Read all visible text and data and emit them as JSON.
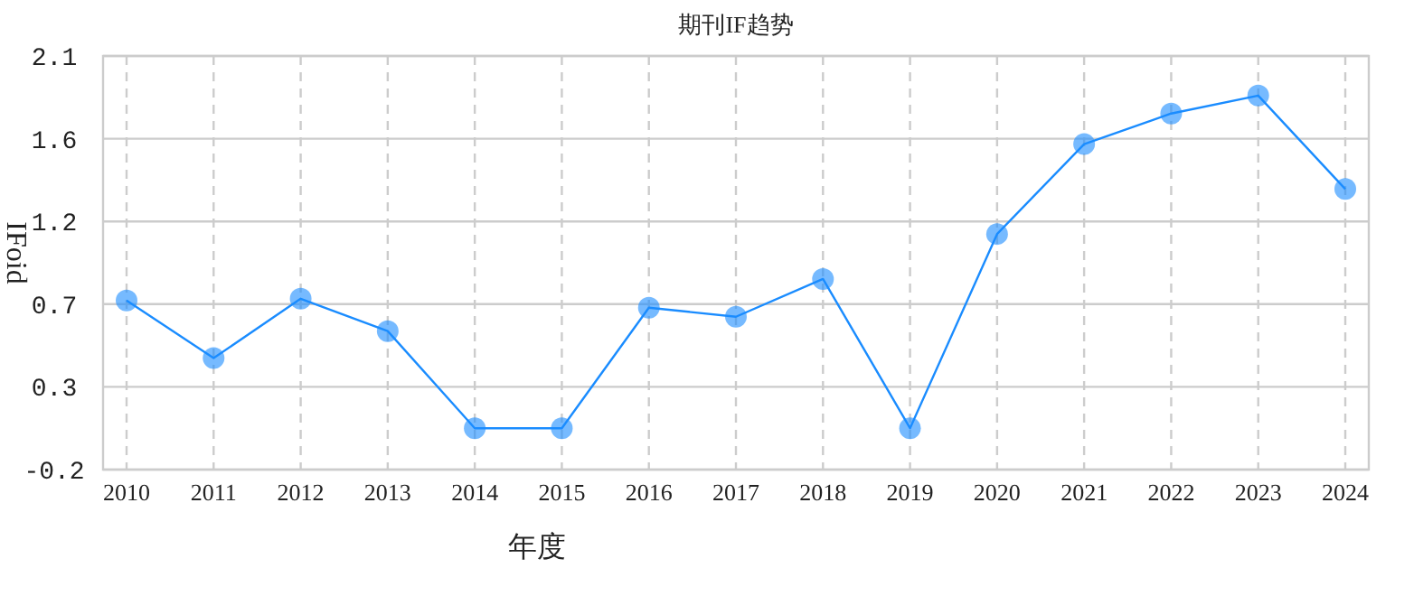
{
  "chart_data": {
    "type": "line",
    "title": "期刊IF趋势",
    "xlabel": "年度",
    "ylabel": "IFoid",
    "categories": [
      "2010",
      "2011",
      "2012",
      "2013",
      "2014",
      "2015",
      "2016",
      "2017",
      "2018",
      "2019",
      "2020",
      "2021",
      "2022",
      "2023",
      "2024"
    ],
    "series": [
      {
        "color": "#1a8cff",
        "values": [
          0.74,
          0.42,
          0.75,
          0.57,
          0.03,
          0.03,
          0.7,
          0.65,
          0.86,
          0.03,
          1.11,
          1.61,
          1.78,
          1.88,
          1.36
        ]
      }
    ],
    "ylim": [
      -0.2,
      2.1
    ],
    "yticks": [
      {
        "value": -0.2,
        "label": "-0.2"
      },
      {
        "value": 0.26,
        "label": "0.3"
      },
      {
        "value": 0.72,
        "label": "0.7"
      },
      {
        "value": 1.18,
        "label": "1.2"
      },
      {
        "value": 1.64,
        "label": "1.6"
      },
      {
        "value": 2.1,
        "label": "2.1"
      }
    ],
    "grid": true,
    "marker": "circle",
    "line_style": "solid"
  }
}
